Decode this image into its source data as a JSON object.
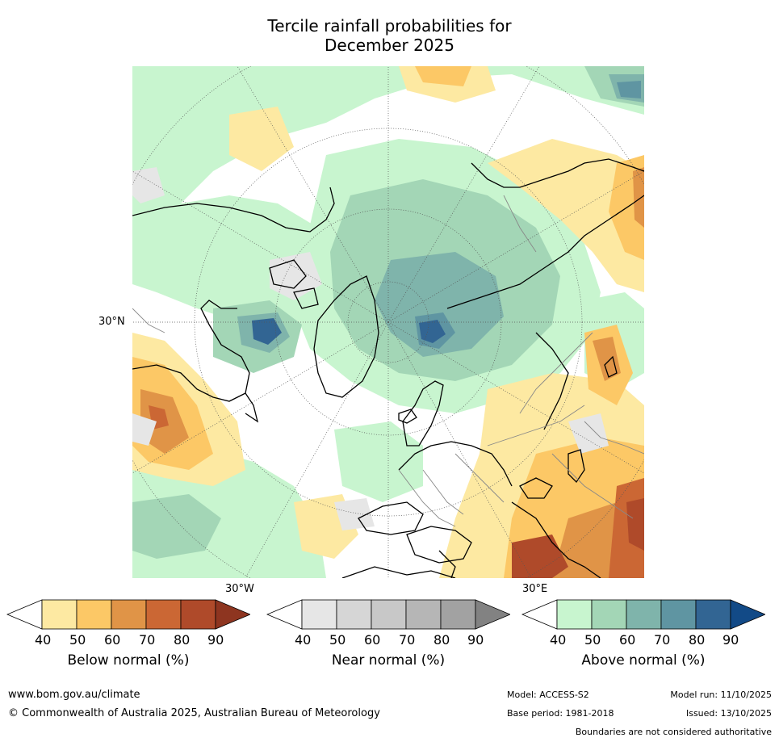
{
  "title": {
    "line1": "Tercile rainfall probabilities for",
    "line2": "December 2025"
  },
  "map": {
    "lat_label": "30°N",
    "lon_labels": {
      "west": "30°W",
      "east": "30°E"
    }
  },
  "colorbars": {
    "below": {
      "title": "Below normal (%)",
      "ticks": [
        "40",
        "50",
        "60",
        "70",
        "80",
        "90"
      ],
      "colors": [
        "#ffffff",
        "#fde9a2",
        "#fcc866",
        "#e09447",
        "#cb6734",
        "#af4a2a",
        "#8e3520"
      ]
    },
    "near": {
      "title": "Near normal (%)",
      "ticks": [
        "40",
        "50",
        "60",
        "70",
        "80",
        "90"
      ],
      "colors": [
        "#ffffff",
        "#e6e6e6",
        "#d6d6d6",
        "#c8c8c8",
        "#b6b6b6",
        "#a2a2a2",
        "#828282"
      ]
    },
    "above": {
      "title": "Above normal (%)",
      "ticks": [
        "40",
        "50",
        "60",
        "70",
        "80",
        "90"
      ],
      "colors": [
        "#ffffff",
        "#c8f5cf",
        "#a3d6b6",
        "#7fb4ab",
        "#5f95a2",
        "#326593",
        "#124a87"
      ]
    }
  },
  "footer": {
    "url": "www.bom.gov.au/climate",
    "copyright": "© Commonwealth of Australia 2025, Australian Bureau of Meteorology",
    "model": "Model: ACCESS-S2",
    "model_run": "Model run: 11/10/2025",
    "base_period": "Base period: 1981-2018",
    "issued": "Issued: 13/10/2025",
    "disclaimer": "Boundaries are not considered authoritative"
  }
}
